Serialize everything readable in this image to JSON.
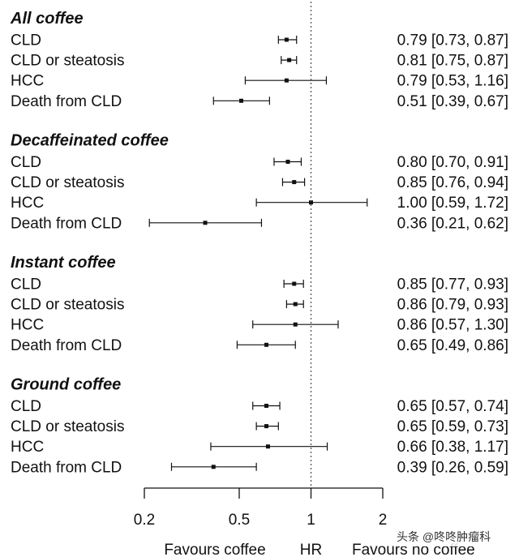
{
  "chart_data": {
    "type": "forest",
    "scale": "log",
    "reference_line": 1,
    "xlim": [
      0.2,
      2
    ],
    "ticks": [
      {
        "value": 0.2,
        "label": "0.2"
      },
      {
        "value": 0.5,
        "label": "0.5"
      },
      {
        "value": 1,
        "label": "1"
      },
      {
        "value": 2,
        "label": "2"
      }
    ],
    "footer": {
      "left": "Favours coffee",
      "center": "HR",
      "right": "Favours no coffee"
    },
    "groups": [
      {
        "title": "All coffee",
        "rows": [
          {
            "label": "CLD",
            "hr": 0.79,
            "lo": 0.73,
            "hi": 0.87,
            "text": "0.79 [0.73, 0.87]"
          },
          {
            "label": "CLD or steatosis",
            "hr": 0.81,
            "lo": 0.75,
            "hi": 0.87,
            "text": "0.81 [0.75, 0.87]"
          },
          {
            "label": "HCC",
            "hr": 0.79,
            "lo": 0.53,
            "hi": 1.16,
            "text": "0.79 [0.53, 1.16]"
          },
          {
            "label": "Death from CLD",
            "hr": 0.51,
            "lo": 0.39,
            "hi": 0.67,
            "text": "0.51 [0.39, 0.67]"
          }
        ]
      },
      {
        "title": "Decaffeinated coffee",
        "rows": [
          {
            "label": "CLD",
            "hr": 0.8,
            "lo": 0.7,
            "hi": 0.91,
            "text": "0.80 [0.70, 0.91]"
          },
          {
            "label": "CLD or steatosis",
            "hr": 0.85,
            "lo": 0.76,
            "hi": 0.94,
            "text": "0.85 [0.76, 0.94]"
          },
          {
            "label": "HCC",
            "hr": 1.0,
            "lo": 0.59,
            "hi": 1.72,
            "text": "1.00 [0.59, 1.72]"
          },
          {
            "label": "Death from CLD",
            "hr": 0.36,
            "lo": 0.21,
            "hi": 0.62,
            "text": "0.36 [0.21, 0.62]"
          }
        ]
      },
      {
        "title": "Instant coffee",
        "rows": [
          {
            "label": "CLD",
            "hr": 0.85,
            "lo": 0.77,
            "hi": 0.93,
            "text": "0.85 [0.77, 0.93]"
          },
          {
            "label": "CLD or steatosis",
            "hr": 0.86,
            "lo": 0.79,
            "hi": 0.93,
            "text": "0.86 [0.79, 0.93]"
          },
          {
            "label": "HCC",
            "hr": 0.86,
            "lo": 0.57,
            "hi": 1.3,
            "text": "0.86 [0.57, 1.30]"
          },
          {
            "label": "Death from CLD",
            "hr": 0.65,
            "lo": 0.49,
            "hi": 0.86,
            "text": "0.65 [0.49, 0.86]"
          }
        ]
      },
      {
        "title": "Ground coffee",
        "rows": [
          {
            "label": "CLD",
            "hr": 0.65,
            "lo": 0.57,
            "hi": 0.74,
            "text": "0.65 [0.57, 0.74]"
          },
          {
            "label": "CLD or steatosis",
            "hr": 0.65,
            "lo": 0.59,
            "hi": 0.73,
            "text": "0.65 [0.59, 0.73]"
          },
          {
            "label": "HCC",
            "hr": 0.66,
            "lo": 0.38,
            "hi": 1.17,
            "text": "0.66 [0.38, 1.17]"
          },
          {
            "label": "Death from CLD",
            "hr": 0.39,
            "lo": 0.26,
            "hi": 0.59,
            "text": "0.39 [0.26, 0.59]"
          }
        ]
      }
    ]
  },
  "watermark": "头条 @咚咚肿瘤科",
  "colors": {
    "ink": "#111111",
    "background": "#ffffff"
  }
}
